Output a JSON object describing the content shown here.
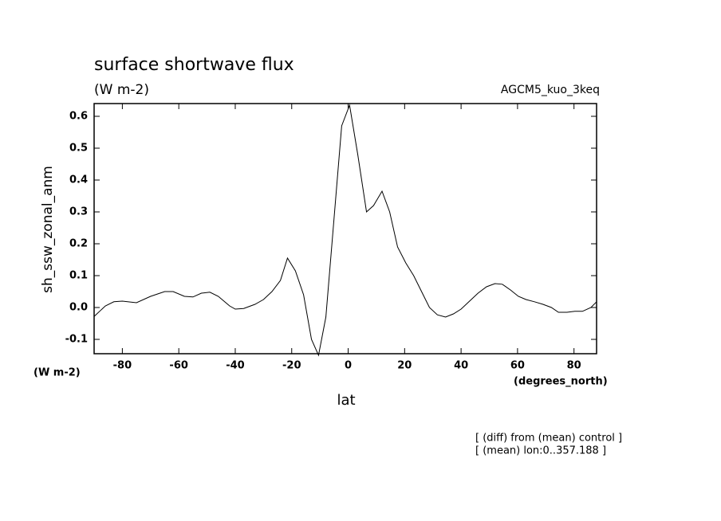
{
  "chart_data": {
    "type": "line",
    "title": "surface shortwave flux",
    "subtitle": "(W m-2)",
    "label_right": "AGCM5_kuo_3keq",
    "y_label": "sh_ssw_zonal_anm",
    "y_unit": "(W m-2)",
    "x_unit": "(degrees_north)",
    "x_label": "lat",
    "notes": [
      "[ (diff) from (mean) control ]",
      "[ (mean) lon:0..357.188 ]"
    ],
    "x": [
      -90,
      -86,
      -83,
      -80,
      -75,
      -70,
      -65,
      -62,
      -58,
      -55,
      -52,
      -49,
      -46,
      -42,
      -40,
      -37,
      -33,
      -30,
      -27,
      -24,
      -21.5,
      -18.7,
      -15.8,
      -13,
      -10.5,
      -7.9,
      -5,
      -2.3,
      0.5,
      3.4,
      6.5,
      9,
      12,
      14.7,
      17.5,
      20.4,
      23.2,
      26,
      28.8,
      31.6,
      34.5,
      37.3,
      40,
      43,
      46,
      49,
      52,
      54.6,
      57.5,
      60.3,
      63,
      66,
      69,
      72,
      74.5,
      77.5,
      80.3,
      83,
      86,
      88
    ],
    "series": [
      {
        "name": "sh_ssw_zonal_anm",
        "color": "#000000",
        "values": [
          -0.028,
          0.005,
          0.018,
          0.02,
          0.015,
          0.035,
          0.05,
          0.05,
          0.035,
          0.033,
          0.045,
          0.048,
          0.035,
          0.005,
          -0.005,
          -0.003,
          0.01,
          0.025,
          0.05,
          0.085,
          0.155,
          0.115,
          0.04,
          -0.1,
          -0.15,
          -0.03,
          0.28,
          0.57,
          0.635,
          0.48,
          0.3,
          0.32,
          0.365,
          0.3,
          0.19,
          0.14,
          0.1,
          0.05,
          0.0,
          -0.023,
          -0.03,
          -0.02,
          -0.005,
          0.02,
          0.045,
          0.065,
          0.075,
          0.073,
          0.055,
          0.035,
          0.025,
          0.018,
          0.01,
          0.0,
          -0.015,
          -0.015,
          -0.012,
          -0.012,
          0.0,
          0.018
        ]
      }
    ],
    "xlim": [
      -90,
      88
    ],
    "ylim": [
      -0.145,
      0.64
    ],
    "xticks": [
      -80,
      -60,
      -40,
      -20,
      0,
      20,
      40,
      60,
      80
    ],
    "yticks": [
      -0.1,
      {
        "value": 0,
        "label": "0.0"
      },
      0.1,
      0.2,
      0.3,
      0.4,
      0.5,
      0.6
    ]
  }
}
